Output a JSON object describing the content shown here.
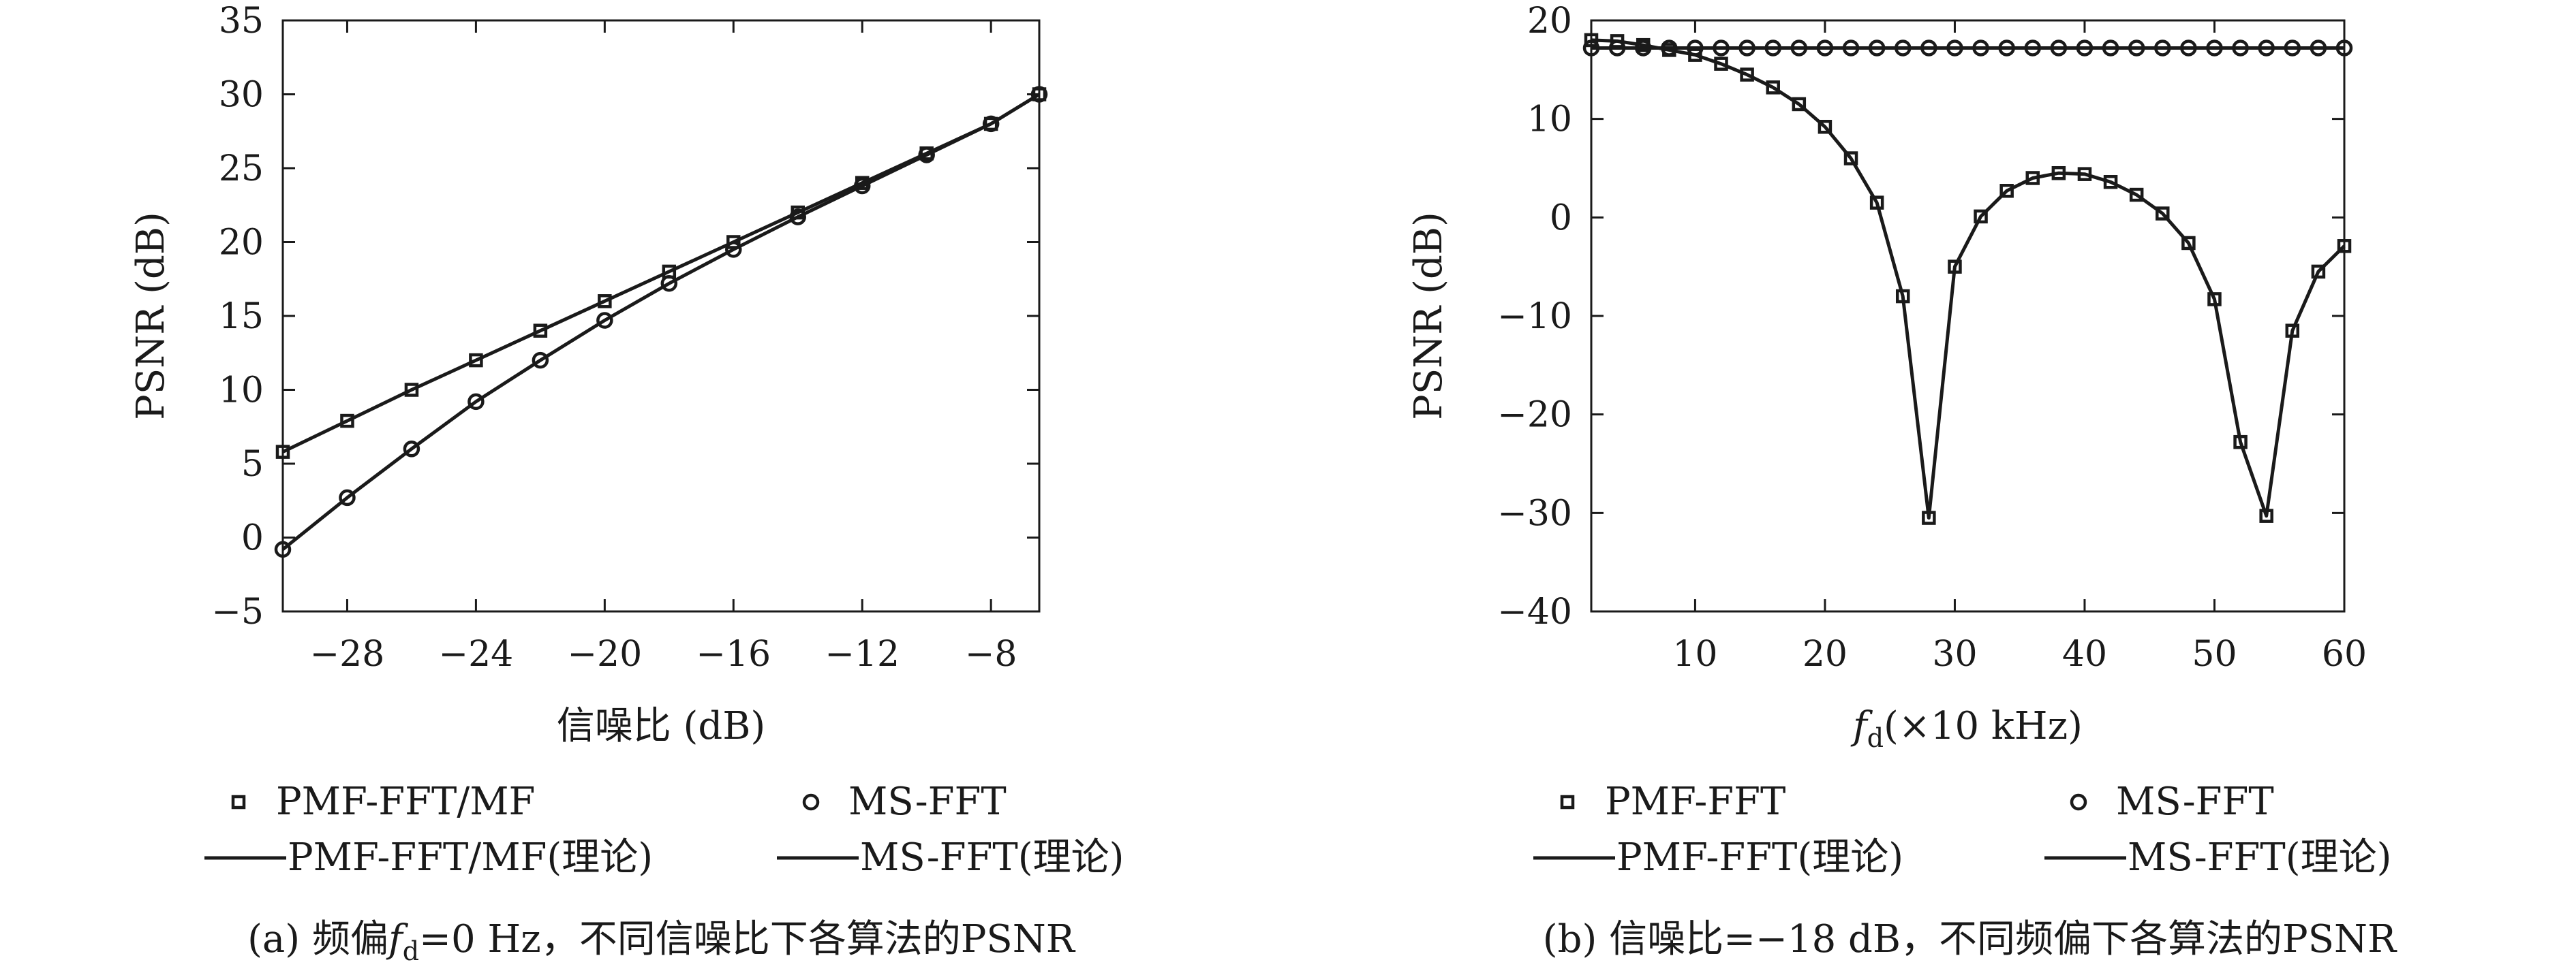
{
  "chart_data": [
    {
      "type": "line",
      "panel": "a",
      "caption": "(a) 频偏fd=0 Hz，不同信噪比下各算法的PSNR",
      "caption_parts": {
        "prefix": "(a) 频偏",
        "symbol": "f",
        "subscript": "d",
        "suffix": "=0 Hz，不同信噪比下各算法的PSNR"
      },
      "xlabel": "信噪比 (dB)",
      "ylabel": "PSNR (dB)",
      "xlim": [
        -30,
        -6.5
      ],
      "ylim": [
        -5,
        35
      ],
      "xticks": [
        -28,
        -24,
        -20,
        -16,
        -12,
        -8
      ],
      "yticks": [
        -5,
        0,
        5,
        10,
        15,
        20,
        25,
        30,
        35
      ],
      "grid": false,
      "legend_position": "bottom",
      "series": [
        {
          "name": "PMF-FFT/MF",
          "kind": "markers",
          "marker": "square",
          "x": [
            -30,
            -28,
            -26,
            -24,
            -22,
            -20,
            -18,
            -16,
            -14,
            -12,
            -10,
            -8,
            -6.5
          ],
          "y": [
            5.8,
            7.9,
            10.0,
            12.0,
            14.0,
            16.0,
            18.0,
            20.0,
            22.0,
            24.0,
            26.0,
            28.0,
            30.0
          ]
        },
        {
          "name": "MS-FFT",
          "kind": "markers",
          "marker": "circle",
          "x": [
            -30,
            -28,
            -26,
            -24,
            -22,
            -20,
            -18,
            -16,
            -14,
            -12,
            -10,
            -8,
            -6.5
          ],
          "y": [
            -0.8,
            2.7,
            6.0,
            9.2,
            12.0,
            14.7,
            17.2,
            19.5,
            21.7,
            23.8,
            25.9,
            28.0,
            30.0
          ]
        },
        {
          "name": "PMF-FFT/MF(理论)",
          "kind": "line",
          "x": [
            -30,
            -28,
            -26,
            -24,
            -22,
            -20,
            -18,
            -16,
            -14,
            -12,
            -10,
            -8,
            -6.5
          ],
          "y": [
            5.8,
            7.9,
            10.0,
            12.0,
            14.0,
            16.0,
            18.0,
            20.0,
            22.0,
            24.0,
            26.0,
            28.0,
            30.0
          ]
        },
        {
          "name": "MS-FFT(理论)",
          "kind": "line",
          "x": [
            -30,
            -28,
            -26,
            -24,
            -22,
            -20,
            -18,
            -16,
            -14,
            -12,
            -10,
            -8,
            -6.5
          ],
          "y": [
            -0.8,
            2.7,
            6.0,
            9.2,
            12.0,
            14.7,
            17.2,
            19.5,
            21.7,
            23.8,
            25.9,
            28.0,
            30.0
          ]
        }
      ]
    },
    {
      "type": "line",
      "panel": "b",
      "caption": "(b) 信噪比=−18 dB，不同频偏下各算法的PSNR",
      "xlabel": "fd(×10 kHz)",
      "xlabel_parts": {
        "symbol": "f",
        "subscript": "d",
        "suffix": "(×10 kHz)"
      },
      "ylabel": "PSNR (dB)",
      "xlim": [
        2,
        60
      ],
      "ylim": [
        -40,
        20
      ],
      "xticks": [
        10,
        20,
        30,
        40,
        50,
        60
      ],
      "yticks": [
        -40,
        -30,
        -20,
        -10,
        0,
        10,
        20
      ],
      "grid": false,
      "legend_position": "bottom",
      "series": [
        {
          "name": "PMF-FFT",
          "kind": "markers",
          "marker": "square",
          "x": [
            2,
            4,
            6,
            8,
            10,
            12,
            14,
            16,
            18,
            20,
            22,
            24,
            26,
            28,
            30,
            32,
            34,
            36,
            38,
            40,
            42,
            44,
            46,
            48,
            50,
            52,
            54,
            56,
            58,
            60
          ],
          "y": [
            18.0,
            17.9,
            17.5,
            17.0,
            16.5,
            15.6,
            14.5,
            13.2,
            11.5,
            9.2,
            6.0,
            1.5,
            -8.0,
            -30.5,
            -5.0,
            0.1,
            2.7,
            4.0,
            4.5,
            4.4,
            3.6,
            2.3,
            0.4,
            -2.6,
            -8.3,
            -22.8,
            -30.3,
            -11.5,
            -5.5,
            -2.9
          ]
        },
        {
          "name": "MS-FFT",
          "kind": "markers",
          "marker": "circle",
          "x": [
            2,
            4,
            6,
            8,
            10,
            12,
            14,
            16,
            18,
            20,
            22,
            24,
            26,
            28,
            30,
            32,
            34,
            36,
            38,
            40,
            42,
            44,
            46,
            48,
            50,
            52,
            54,
            56,
            58,
            60
          ],
          "y": [
            17.2,
            17.2,
            17.2,
            17.2,
            17.2,
            17.2,
            17.2,
            17.2,
            17.2,
            17.2,
            17.2,
            17.2,
            17.2,
            17.2,
            17.2,
            17.2,
            17.2,
            17.2,
            17.2,
            17.2,
            17.2,
            17.2,
            17.2,
            17.2,
            17.2,
            17.2,
            17.2,
            17.2,
            17.2,
            17.2
          ]
        },
        {
          "name": "PMF-FFT(理论)",
          "kind": "line",
          "x": [
            2,
            4,
            6,
            8,
            10,
            12,
            14,
            16,
            18,
            20,
            22,
            24,
            26,
            28,
            30,
            32,
            34,
            36,
            38,
            40,
            42,
            44,
            46,
            48,
            50,
            52,
            54,
            56,
            58,
            60
          ],
          "y": [
            18.0,
            17.9,
            17.5,
            17.0,
            16.5,
            15.6,
            14.5,
            13.2,
            11.5,
            9.2,
            6.0,
            1.5,
            -8.0,
            -30.5,
            -5.0,
            0.1,
            2.7,
            4.0,
            4.5,
            4.4,
            3.6,
            2.3,
            0.4,
            -2.6,
            -8.3,
            -22.8,
            -30.3,
            -11.5,
            -5.5,
            -2.9
          ]
        },
        {
          "name": "MS-FFT(理论)",
          "kind": "line",
          "x": [
            2,
            4,
            6,
            8,
            10,
            12,
            14,
            16,
            18,
            20,
            22,
            24,
            26,
            28,
            30,
            32,
            34,
            36,
            38,
            40,
            42,
            44,
            46,
            48,
            50,
            52,
            54,
            56,
            58,
            60
          ],
          "y": [
            17.2,
            17.2,
            17.2,
            17.2,
            17.2,
            17.2,
            17.2,
            17.2,
            17.2,
            17.2,
            17.2,
            17.2,
            17.2,
            17.2,
            17.2,
            17.2,
            17.2,
            17.2,
            17.2,
            17.2,
            17.2,
            17.2,
            17.2,
            17.2,
            17.2,
            17.2,
            17.2,
            17.2,
            17.2,
            17.2
          ]
        }
      ]
    }
  ]
}
